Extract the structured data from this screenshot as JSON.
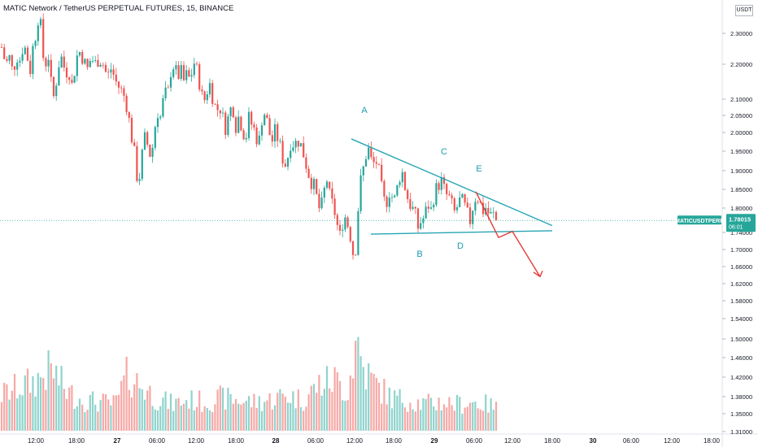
{
  "header": {
    "title": "MATIC Network / TetherUS PERPETUAL FUTURES, 15, BINANCE",
    "currency": "USDT"
  },
  "price_tag": {
    "symbol": "MATICUSDTPERP",
    "price": "1.78015",
    "countdown": "06:01"
  },
  "colors": {
    "up": "#26a69a",
    "down": "#ef5350",
    "pattern_line": "#26a5b5",
    "projection": "#e53935",
    "label": "#1e9bb0",
    "axis_text": "#131722"
  },
  "pattern_labels": [
    "A",
    "B",
    "C",
    "D",
    "E"
  ],
  "chart_data": {
    "type": "candlestick",
    "title": "MATIC Network / TetherUS PERPETUAL FUTURES, 15, BINANCE",
    "x_ticks": [
      "12:00",
      "18:00",
      "27",
      "06:00",
      "12:00",
      "18:00",
      "28",
      "06:00",
      "12:00",
      "18:00",
      "29",
      "06:00",
      "12:00",
      "18:00",
      "30",
      "06:00",
      "12:00",
      "18:00"
    ],
    "y_ticks": [
      "2.30000",
      "2.20000",
      "2.10000",
      "2.05000",
      "2.00000",
      "1.95000",
      "1.90000",
      "1.85000",
      "1.80000",
      "1.74000",
      "1.70000",
      "1.66000",
      "1.62000",
      "1.58000",
      "1.54000",
      "1.50000",
      "1.46000",
      "1.42000",
      "1.38000",
      "1.35000",
      "1.31000"
    ],
    "ylim": [
      1.31,
      2.4
    ],
    "current_price": 1.78015,
    "price_path": [
      [
        0,
        2.29
      ],
      [
        5,
        2.24
      ],
      [
        10,
        2.26
      ],
      [
        14,
        2.21
      ],
      [
        18,
        2.27
      ],
      [
        22,
        2.25
      ],
      [
        27,
        2.3
      ],
      [
        31,
        2.27
      ],
      [
        35,
        2.22
      ],
      [
        39,
        2.3
      ],
      [
        42,
        2.33
      ],
      [
        45,
        2.38
      ],
      [
        48,
        2.35
      ],
      [
        50,
        2.27
      ],
      [
        54,
        2.24
      ],
      [
        57,
        2.28
      ],
      [
        60,
        2.2
      ],
      [
        63,
        2.13
      ],
      [
        66,
        2.17
      ],
      [
        70,
        2.24
      ],
      [
        74,
        2.26
      ],
      [
        78,
        2.22
      ],
      [
        83,
        2.22
      ],
      [
        87,
        2.17
      ],
      [
        91,
        2.25
      ],
      [
        95,
        2.28
      ],
      [
        100,
        2.26
      ],
      [
        105,
        2.22
      ],
      [
        110,
        2.26
      ],
      [
        115,
        2.24
      ],
      [
        120,
        2.26
      ],
      [
        125,
        2.24
      ],
      [
        130,
        2.2
      ],
      [
        135,
        2.23
      ],
      [
        140,
        2.19
      ],
      [
        145,
        2.17
      ],
      [
        150,
        2.15
      ],
      [
        155,
        2.11
      ],
      [
        158,
        2.05
      ],
      [
        162,
        2.0
      ],
      [
        165,
        1.94
      ],
      [
        168,
        1.88
      ],
      [
        172,
        1.96
      ],
      [
        176,
        2.02
      ],
      [
        180,
        2.0
      ],
      [
        184,
        1.96
      ],
      [
        188,
        2.05
      ],
      [
        192,
        2.1
      ],
      [
        196,
        2.08
      ],
      [
        200,
        2.16
      ],
      [
        204,
        2.14
      ],
      [
        208,
        2.22
      ],
      [
        212,
        2.24
      ],
      [
        216,
        2.2
      ],
      [
        220,
        2.22
      ],
      [
        224,
        2.19
      ],
      [
        228,
        2.21
      ],
      [
        232,
        2.19
      ],
      [
        236,
        2.25
      ],
      [
        240,
        2.22
      ],
      [
        244,
        2.18
      ],
      [
        248,
        2.12
      ],
      [
        252,
        2.16
      ],
      [
        256,
        2.18
      ],
      [
        260,
        2.14
      ],
      [
        264,
        2.1
      ],
      [
        268,
        2.12
      ],
      [
        272,
        2.08
      ],
      [
        276,
        2.05
      ],
      [
        280,
        2.1
      ],
      [
        284,
        2.12
      ],
      [
        288,
        2.06
      ],
      [
        292,
        2.09
      ],
      [
        296,
        2.05
      ],
      [
        300,
        2.02
      ],
      [
        304,
        2.08
      ],
      [
        308,
        2.06
      ],
      [
        312,
        2.04
      ],
      [
        316,
        2.0
      ],
      [
        320,
        2.08
      ],
      [
        324,
        2.1
      ],
      [
        328,
        2.05
      ],
      [
        332,
        2.01
      ],
      [
        336,
        2.04
      ],
      [
        340,
        2.02
      ],
      [
        344,
        1.98
      ],
      [
        348,
        1.94
      ],
      [
        352,
        1.97
      ],
      [
        356,
        2.02
      ],
      [
        360,
        2.0
      ],
      [
        364,
        2.02
      ],
      [
        368,
        2.0
      ],
      [
        372,
        1.97
      ],
      [
        376,
        1.93
      ],
      [
        380,
        1.9
      ],
      [
        384,
        1.88
      ],
      [
        388,
        1.84
      ],
      [
        392,
        1.8
      ],
      [
        396,
        1.86
      ],
      [
        400,
        1.9
      ],
      [
        404,
        1.84
      ],
      [
        408,
        1.82
      ],
      [
        412,
        1.78
      ],
      [
        415,
        1.72
      ],
      [
        418,
        1.76
      ],
      [
        421,
        1.8
      ],
      [
        424,
        1.78
      ],
      [
        428,
        1.75
      ],
      [
        431,
        1.7
      ],
      [
        434,
        1.66
      ],
      [
        437,
        1.76
      ],
      [
        440,
        1.88
      ],
      [
        443,
        1.91
      ],
      [
        447,
        1.96
      ],
      [
        450,
        2.0
      ],
      [
        453,
        1.97
      ],
      [
        456,
        1.94
      ],
      [
        460,
        1.96
      ],
      [
        464,
        1.92
      ],
      [
        468,
        1.86
      ],
      [
        472,
        1.82
      ],
      [
        476,
        1.87
      ],
      [
        480,
        1.85
      ],
      [
        484,
        1.84
      ],
      [
        488,
        1.9
      ],
      [
        492,
        1.93
      ],
      [
        496,
        1.88
      ],
      [
        500,
        1.84
      ],
      [
        504,
        1.82
      ],
      [
        508,
        1.8
      ],
      [
        512,
        1.76
      ],
      [
        516,
        1.78
      ],
      [
        520,
        1.79
      ],
      [
        524,
        1.83
      ],
      [
        528,
        1.81
      ],
      [
        532,
        1.86
      ],
      [
        536,
        1.88
      ],
      [
        540,
        1.9
      ],
      [
        544,
        1.87
      ],
      [
        548,
        1.85
      ],
      [
        552,
        1.84
      ],
      [
        556,
        1.8
      ],
      [
        560,
        1.82
      ],
      [
        564,
        1.84
      ],
      [
        568,
        1.83
      ],
      [
        572,
        1.8
      ],
      [
        576,
        1.78
      ],
      [
        580,
        1.83
      ],
      [
        584,
        1.86
      ],
      [
        588,
        1.83
      ],
      [
        592,
        1.81
      ],
      [
        596,
        1.82
      ],
      [
        600,
        1.79
      ],
      [
        604,
        1.8
      ],
      [
        608,
        1.78
      ]
    ],
    "pattern": {
      "upper_line": [
        [
          0.027,
          2.02
        ],
        [
          1.0,
          1.765
        ]
      ],
      "lower_line": [
        [
          0.0,
          1.74
        ],
        [
          1.0,
          1.75
        ]
      ],
      "projection": [
        [
          1.765,
          1.73
        ],
        [
          1.725,
          1.8
        ],
        [
          1.66,
          1.755
        ],
        [
          1.6,
          1.66
        ]
      ]
    },
    "volume_path": [
      [
        0,
        0.35
      ],
      [
        20,
        0.42
      ],
      [
        40,
        0.48
      ],
      [
        62,
        0.6
      ],
      [
        80,
        0.38
      ],
      [
        100,
        0.3
      ],
      [
        120,
        0.28
      ],
      [
        140,
        0.26
      ],
      [
        155,
        0.55
      ],
      [
        170,
        0.45
      ],
      [
        190,
        0.32
      ],
      [
        210,
        0.26
      ],
      [
        230,
        0.3
      ],
      [
        250,
        0.28
      ],
      [
        270,
        0.32
      ],
      [
        290,
        0.3
      ],
      [
        310,
        0.28
      ],
      [
        330,
        0.3
      ],
      [
        350,
        0.35
      ],
      [
        370,
        0.3
      ],
      [
        390,
        0.45
      ],
      [
        410,
        0.5
      ],
      [
        425,
        0.38
      ],
      [
        437,
        0.9
      ],
      [
        445,
        0.6
      ],
      [
        460,
        0.45
      ],
      [
        480,
        0.32
      ],
      [
        500,
        0.3
      ],
      [
        520,
        0.26
      ],
      [
        540,
        0.28
      ],
      [
        560,
        0.26
      ],
      [
        580,
        0.28
      ],
      [
        600,
        0.25
      ],
      [
        608,
        0.22
      ]
    ]
  }
}
